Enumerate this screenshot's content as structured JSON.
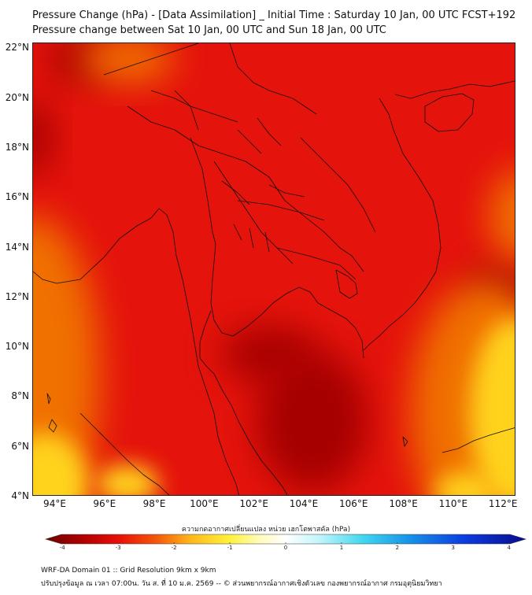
{
  "title": {
    "line1": "Pressure Change (hPa) - [Data Assimilation] _ Initial Time : Saturday 10 Jan, 00 UTC FCST+192",
    "line2": "Pressure change between Sat 10 Jan, 00 UTC and Sun 18 Jan, 00 UTC"
  },
  "map": {
    "lat_labels": [
      "22°N",
      "20°N",
      "18°N",
      "16°N",
      "14°N",
      "12°N",
      "10°N",
      "8°N",
      "6°N",
      "4°N"
    ],
    "lon_labels": [
      "94°E",
      "96°E",
      "98°E",
      "100°E",
      "102°E",
      "104°E",
      "106°E",
      "108°E",
      "110°E",
      "112°E"
    ],
    "lat_values": [
      22,
      20,
      18,
      16,
      14,
      12,
      10,
      8,
      6,
      4
    ],
    "lon_values": [
      94,
      96,
      98,
      100,
      102,
      104,
      106,
      108,
      110,
      112
    ],
    "lat_range": [
      4,
      22.2
    ],
    "lon_range": [
      93.1,
      112.5
    ],
    "colors": {
      "base": "#e4130b",
      "deep": "#a60000",
      "orange": "#f06f00",
      "yellow": "#ffd21a",
      "coast": "#111111"
    }
  },
  "colorbar": {
    "title": "ความกดอากาศเปลี่ยนแปลง หน่วย เฮกโตพาสคัล (hPa)",
    "tick_labels": [
      "-4",
      "-3",
      "-2",
      "-1",
      "0",
      "1",
      "2",
      "3",
      "4"
    ],
    "tick_values": [
      -4,
      -3,
      -2,
      -1,
      0,
      1,
      2,
      3,
      4
    ],
    "range": [
      -4.3,
      4.3
    ],
    "stops": [
      {
        "v": -4.3,
        "c": "#6b0000"
      },
      {
        "v": -3.6,
        "c": "#b40000"
      },
      {
        "v": -3.0,
        "c": "#e80f08"
      },
      {
        "v": -2.3,
        "c": "#f45a0a"
      },
      {
        "v": -1.7,
        "c": "#ffb81a"
      },
      {
        "v": -1.0,
        "c": "#fff23a"
      },
      {
        "v": -0.5,
        "c": "#fffbb5"
      },
      {
        "v": 0.0,
        "c": "#ffffff"
      },
      {
        "v": 0.6,
        "c": "#c2f5fa"
      },
      {
        "v": 1.4,
        "c": "#3fd6f0"
      },
      {
        "v": 2.2,
        "c": "#1893e8"
      },
      {
        "v": 3.2,
        "c": "#0b3ce0"
      },
      {
        "v": 4.3,
        "c": "#0a0a8c"
      }
    ]
  },
  "footer": {
    "line1": "WRF-DA Domain 01 :: Grid Resolution 9km x 9km",
    "line2": "ปรับปรุงข้อมูล ณ เวลา 07:00น. วัน ส. ที่ 10 ม.ค. 2569 -- © ส่วนพยากรณ์อากาศเชิงตัวเลข กองพยากรณ์อากาศ กรมอุตุนิยมวิทยา"
  }
}
